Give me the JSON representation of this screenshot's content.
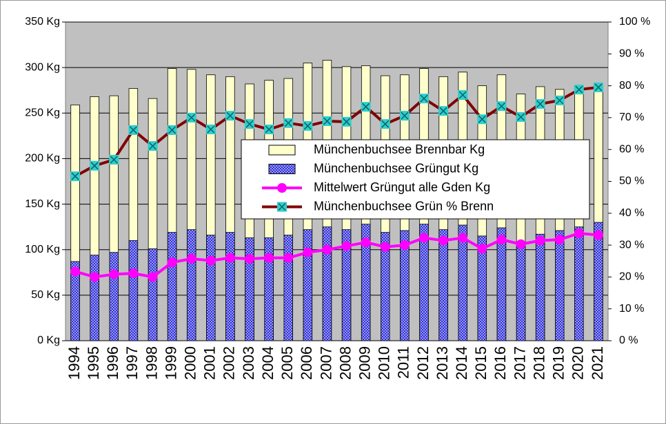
{
  "chart_data": {
    "type": "combo",
    "categories": [
      "1994",
      "1995",
      "1996",
      "1997",
      "1998",
      "1999",
      "2000",
      "2001",
      "2002",
      "2003",
      "2004",
      "2005",
      "2006",
      "2007",
      "2008",
      "2009",
      "2010",
      "2011",
      "2012",
      "2013",
      "2014",
      "2015",
      "2016",
      "2017",
      "2018",
      "2019",
      "2020",
      "2021"
    ],
    "series": [
      {
        "name": "Münchenbuchsee Brennbar Kg",
        "type": "bar",
        "color": "#ffffcc",
        "values": [
          259,
          268,
          269,
          277,
          266,
          299,
          298,
          292,
          290,
          282,
          286,
          288,
          305,
          308,
          301,
          302,
          291,
          292,
          299,
          290,
          295,
          280,
          292,
          271,
          279,
          276,
          278,
          281
        ]
      },
      {
        "name": "Münchenbuchsee Grüngut Kg",
        "type": "bar",
        "color": "#3333cc",
        "values": [
          87,
          94,
          97,
          110,
          101,
          119,
          122,
          116,
          119,
          113,
          113,
          116,
          122,
          125,
          122,
          128,
          119,
          121,
          128,
          122,
          127,
          115,
          124,
          108,
          117,
          121,
          125,
          130
        ]
      },
      {
        "name": "Mittelwert Grüngut alle Gden Kg",
        "type": "line",
        "color": "#ff00ff",
        "values": [
          76,
          70,
          73,
          74,
          70,
          86,
          90,
          88,
          91,
          90,
          91,
          91,
          97,
          100,
          104,
          108,
          103,
          105,
          113,
          110,
          113,
          101,
          111,
          106,
          110,
          111,
          118,
          116
        ]
      },
      {
        "name": "Münchenbuchsee Grün % Brenn",
        "type": "line",
        "axis": "y2",
        "color": "#800000",
        "marker_color": "#33cccc",
        "values": [
          51.6,
          54.9,
          56.8,
          66.1,
          61.1,
          66.1,
          70,
          66.3,
          70.6,
          68,
          66.3,
          68.3,
          67.4,
          68.9,
          68.7,
          73.4,
          68,
          70.6,
          76,
          72.1,
          77.1,
          69.5,
          73.6,
          70.2,
          74.3,
          75.4,
          78.8,
          79.5
        ]
      }
    ],
    "ylim": [
      0,
      350
    ],
    "yticks": [
      {
        "value": 0,
        "label": "0 Kg"
      },
      {
        "value": 50,
        "label": "50 Kg"
      },
      {
        "value": 100,
        "label": "100 Kg"
      },
      {
        "value": 150,
        "label": "150 Kg"
      },
      {
        "value": 200,
        "label": "200 Kg"
      },
      {
        "value": 250,
        "label": "250 Kg"
      },
      {
        "value": 300,
        "label": "300 Kg"
      },
      {
        "value": 350,
        "label": "350 Kg"
      }
    ],
    "y2lim": [
      0,
      100
    ],
    "y2ticks": [
      {
        "value": 0,
        "label": "0 %"
      },
      {
        "value": 10,
        "label": "10 %"
      },
      {
        "value": 20,
        "label": "20 %"
      },
      {
        "value": 30,
        "label": "30 %"
      },
      {
        "value": 40,
        "label": "40 %"
      },
      {
        "value": 50,
        "label": "50 %"
      },
      {
        "value": 60,
        "label": "60 %"
      },
      {
        "value": 70,
        "label": "70 %"
      },
      {
        "value": 80,
        "label": "80 %"
      },
      {
        "value": 90,
        "label": "90 %"
      },
      {
        "value": 100,
        "label": "100 %"
      }
    ],
    "grid": true,
    "plot_background": "#c0c0c0",
    "legend": "right"
  }
}
